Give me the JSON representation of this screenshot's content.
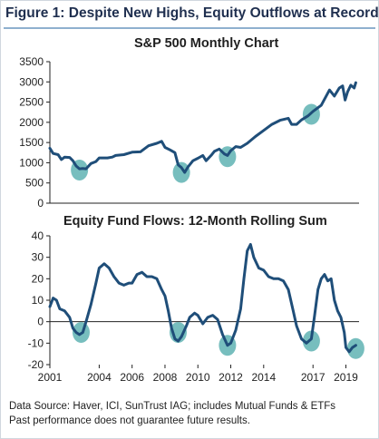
{
  "figure_title": "Figure 1: Despite New Highs, Equity Outflows at Record",
  "footnotes": [
    "Data Source: Haver, ICI, SunTrust IAG; includes Mutual Funds & ETFs",
    "Past performance does not guarantee future results."
  ],
  "colors": {
    "line": "#1f4e79",
    "highlight": "#5fb3b3",
    "title": "#1f2f4f",
    "rule": "#8fb0cf"
  },
  "chart_data": [
    {
      "type": "line",
      "title": "S&P 500 Monthly Chart",
      "ylim": [
        0,
        3500
      ],
      "yticks": [
        0,
        500,
        1000,
        1500,
        2000,
        2500,
        3000,
        3500
      ],
      "xlim": [
        2001,
        2019.8
      ],
      "grid": false,
      "series": [
        {
          "points": [
            [
              2001.0,
              1360
            ],
            [
              2001.2,
              1230
            ],
            [
              2001.5,
              1200
            ],
            [
              2001.7,
              1080
            ],
            [
              2001.9,
              1140
            ],
            [
              2002.2,
              1130
            ],
            [
              2002.4,
              1050
            ],
            [
              2002.6,
              920
            ],
            [
              2002.8,
              850
            ],
            [
              2003.0,
              860
            ],
            [
              2003.2,
              850
            ],
            [
              2003.5,
              980
            ],
            [
              2003.8,
              1030
            ],
            [
              2004.0,
              1120
            ],
            [
              2004.5,
              1120
            ],
            [
              2004.8,
              1140
            ],
            [
              2005.0,
              1180
            ],
            [
              2005.5,
              1200
            ],
            [
              2006.0,
              1260
            ],
            [
              2006.5,
              1270
            ],
            [
              2007.0,
              1420
            ],
            [
              2007.5,
              1480
            ],
            [
              2007.8,
              1530
            ],
            [
              2008.0,
              1380
            ],
            [
              2008.3,
              1320
            ],
            [
              2008.6,
              1250
            ],
            [
              2008.8,
              950
            ],
            [
              2009.0,
              880
            ],
            [
              2009.2,
              760
            ],
            [
              2009.4,
              900
            ],
            [
              2009.7,
              1050
            ],
            [
              2010.0,
              1110
            ],
            [
              2010.3,
              1180
            ],
            [
              2010.5,
              1050
            ],
            [
              2010.8,
              1180
            ],
            [
              2011.0,
              1280
            ],
            [
              2011.3,
              1340
            ],
            [
              2011.6,
              1220
            ],
            [
              2011.8,
              1180
            ],
            [
              2012.0,
              1300
            ],
            [
              2012.3,
              1400
            ],
            [
              2012.6,
              1380
            ],
            [
              2013.0,
              1480
            ],
            [
              2013.5,
              1650
            ],
            [
              2014.0,
              1800
            ],
            [
              2014.5,
              1950
            ],
            [
              2015.0,
              2050
            ],
            [
              2015.5,
              2100
            ],
            [
              2015.7,
              1950
            ],
            [
              2016.0,
              1950
            ],
            [
              2016.3,
              2060
            ],
            [
              2016.7,
              2160
            ],
            [
              2017.0,
              2270
            ],
            [
              2017.5,
              2420
            ],
            [
              2018.0,
              2800
            ],
            [
              2018.3,
              2650
            ],
            [
              2018.6,
              2850
            ],
            [
              2018.8,
              2900
            ],
            [
              2018.95,
              2550
            ],
            [
              2019.1,
              2750
            ],
            [
              2019.3,
              2920
            ],
            [
              2019.5,
              2850
            ],
            [
              2019.6,
              2980
            ]
          ]
        }
      ],
      "highlights": [
        [
          2002.8,
          820
        ],
        [
          2009.0,
          760
        ],
        [
          2011.8,
          1150
        ],
        [
          2016.9,
          2200
        ]
      ]
    },
    {
      "type": "line",
      "title": "Equity Fund Flows: 12-Month Rolling Sum",
      "ylim": [
        -20,
        40
      ],
      "yticks": [
        -20,
        -10,
        0,
        10,
        20,
        30,
        40
      ],
      "xlim": [
        2001,
        2019.8
      ],
      "xticks": [
        2001,
        2004,
        2006,
        2008,
        2010,
        2012,
        2014,
        2017,
        2019
      ],
      "grid": false,
      "series": [
        {
          "points": [
            [
              2001.0,
              7
            ],
            [
              2001.2,
              11
            ],
            [
              2001.4,
              10
            ],
            [
              2001.6,
              6
            ],
            [
              2001.9,
              5
            ],
            [
              2002.2,
              2
            ],
            [
              2002.4,
              -3
            ],
            [
              2002.6,
              -5
            ],
            [
              2002.8,
              -6
            ],
            [
              2003.0,
              -5
            ],
            [
              2003.2,
              0
            ],
            [
              2003.5,
              8
            ],
            [
              2003.8,
              18
            ],
            [
              2004.0,
              25
            ],
            [
              2004.3,
              27
            ],
            [
              2004.6,
              25
            ],
            [
              2004.9,
              21
            ],
            [
              2005.2,
              18
            ],
            [
              2005.5,
              17
            ],
            [
              2005.8,
              18
            ],
            [
              2006.0,
              18
            ],
            [
              2006.3,
              22
            ],
            [
              2006.6,
              23
            ],
            [
              2006.9,
              21
            ],
            [
              2007.2,
              21
            ],
            [
              2007.5,
              20
            ],
            [
              2007.8,
              15
            ],
            [
              2008.0,
              12
            ],
            [
              2008.2,
              5
            ],
            [
              2008.4,
              -3
            ],
            [
              2008.6,
              -8
            ],
            [
              2008.8,
              -9
            ],
            [
              2009.0,
              -7
            ],
            [
              2009.3,
              -2
            ],
            [
              2009.5,
              2
            ],
            [
              2009.8,
              4
            ],
            [
              2010.0,
              3
            ],
            [
              2010.3,
              -1
            ],
            [
              2010.6,
              2
            ],
            [
              2010.9,
              3
            ],
            [
              2011.2,
              1
            ],
            [
              2011.5,
              -6
            ],
            [
              2011.8,
              -11
            ],
            [
              2012.0,
              -10
            ],
            [
              2012.3,
              -4
            ],
            [
              2012.6,
              6
            ],
            [
              2012.8,
              20
            ],
            [
              2013.0,
              33
            ],
            [
              2013.2,
              36
            ],
            [
              2013.4,
              30
            ],
            [
              2013.7,
              25
            ],
            [
              2014.0,
              24
            ],
            [
              2014.3,
              21
            ],
            [
              2014.6,
              20
            ],
            [
              2014.9,
              20
            ],
            [
              2015.2,
              19
            ],
            [
              2015.5,
              15
            ],
            [
              2015.8,
              5
            ],
            [
              2016.0,
              -2
            ],
            [
              2016.3,
              -8
            ],
            [
              2016.6,
              -10
            ],
            [
              2016.9,
              -8
            ],
            [
              2017.1,
              3
            ],
            [
              2017.3,
              15
            ],
            [
              2017.5,
              20
            ],
            [
              2017.7,
              22
            ],
            [
              2017.9,
              19
            ],
            [
              2018.1,
              20
            ],
            [
              2018.3,
              10
            ],
            [
              2018.5,
              5
            ],
            [
              2018.7,
              2
            ],
            [
              2018.9,
              -5
            ],
            [
              2019.0,
              -12
            ],
            [
              2019.2,
              -14
            ],
            [
              2019.4,
              -12
            ],
            [
              2019.6,
              -11
            ]
          ]
        }
      ],
      "highlights": [
        [
          2002.9,
          -5
        ],
        [
          2008.8,
          -5
        ],
        [
          2011.8,
          -11
        ],
        [
          2016.9,
          -9
        ],
        [
          2019.6,
          -12.5
        ]
      ]
    }
  ]
}
